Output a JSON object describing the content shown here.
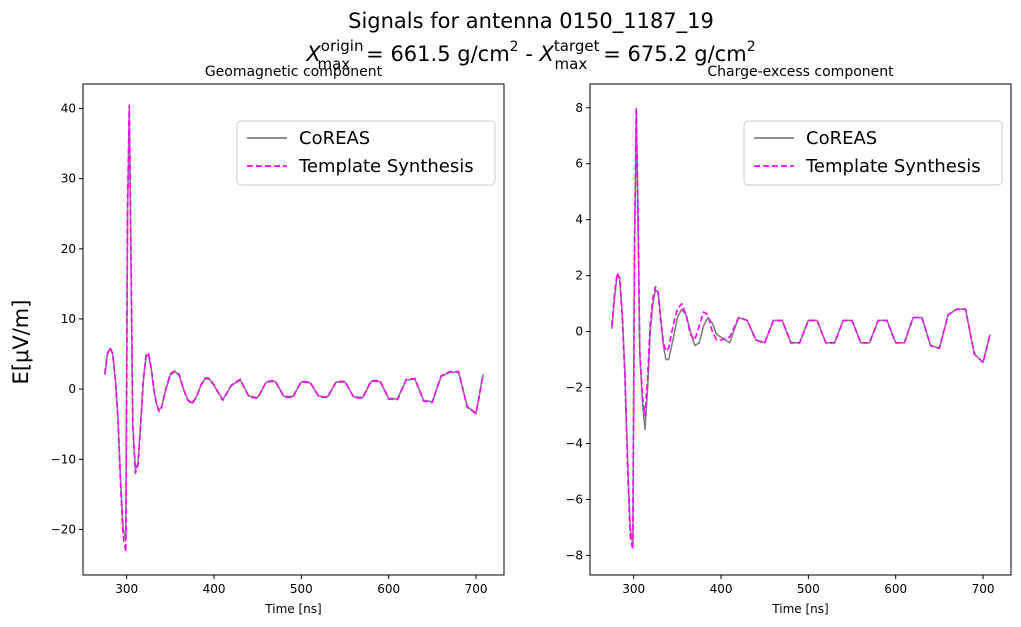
{
  "figure": {
    "title_line1": "Signals for antenna 0150_1187_19",
    "title_line2": {
      "origin_label": "X",
      "origin_sup": "origin",
      "origin_sub": "max",
      "origin_value": "=  661.5 g/cm",
      "joiner": " -  ",
      "target_label": "X",
      "target_sup": "target",
      "target_sub": "max",
      "target_value": "=  675.2 g/cm",
      "unit_exponent": "2"
    },
    "shared_ylabel": "E[μV/m]"
  },
  "colors": {
    "coreas": "#808080",
    "template_synthesis": "#ff00ff"
  },
  "chart_data": [
    {
      "type": "line",
      "title": "Geomagnetic component",
      "xlabel": "Time [ns]",
      "ylabel": "E[μV/m]",
      "xlim": [
        250,
        732
      ],
      "ylim": [
        -26.5,
        43.5
      ],
      "xticks": [
        300,
        400,
        500,
        600,
        700
      ],
      "yticks": [
        -20,
        -10,
        0,
        10,
        20,
        30,
        40
      ],
      "ytick_labels": [
        "−20",
        "−10",
        "0",
        "10",
        "20",
        "30",
        "40"
      ],
      "grid": false,
      "legend_position": "top-right",
      "x": [
        275,
        278,
        281,
        284,
        287,
        290,
        293,
        296,
        299,
        301,
        303,
        305,
        307,
        310,
        313,
        316,
        319,
        322,
        325,
        328,
        331,
        334,
        337,
        340,
        345,
        350,
        355,
        360,
        365,
        370,
        375,
        380,
        385,
        390,
        395,
        400,
        410,
        420,
        430,
        440,
        450,
        460,
        470,
        480,
        490,
        500,
        510,
        520,
        530,
        540,
        550,
        560,
        570,
        580,
        590,
        600,
        610,
        620,
        630,
        640,
        650,
        660,
        670,
        680,
        690,
        700,
        708
      ],
      "series": [
        {
          "name": "CoREAS",
          "style": "solid",
          "values": [
            2.0,
            5.0,
            5.8,
            5.0,
            1.5,
            -4.0,
            -13.0,
            -20.0,
            -21.5,
            25.0,
            40.0,
            18.0,
            -5.0,
            -11.5,
            -10.5,
            -5.0,
            1.0,
            4.5,
            5.0,
            3.0,
            0.0,
            -2.0,
            -3.0,
            -2.5,
            0.0,
            2.0,
            2.5,
            2.0,
            0.0,
            -1.5,
            -2.0,
            -1.0,
            0.5,
            1.5,
            1.4,
            0.5,
            -1.5,
            0.5,
            1.3,
            -1.0,
            -1.2,
            1.0,
            1.1,
            -1.0,
            -1.1,
            1.0,
            0.9,
            -1.0,
            -1.1,
            1.0,
            1.0,
            -1.1,
            -1.2,
            1.1,
            1.1,
            -1.3,
            -1.4,
            1.3,
            1.4,
            -1.6,
            -1.8,
            1.8,
            2.4,
            2.4,
            -2.5,
            -3.4,
            2.0
          ]
        },
        {
          "name": "Template Synthesis",
          "style": "dashed",
          "values": [
            2.2,
            5.1,
            5.9,
            5.1,
            1.4,
            -4.2,
            -13.5,
            -21.0,
            -23.2,
            26.0,
            40.5,
            18.5,
            -5.2,
            -12.0,
            -10.8,
            -5.2,
            1.1,
            4.8,
            5.2,
            3.1,
            0.1,
            -2.1,
            -3.2,
            -2.6,
            0.1,
            2.2,
            2.6,
            2.1,
            0.0,
            -1.6,
            -2.1,
            -1.1,
            0.6,
            1.6,
            1.5,
            0.6,
            -1.6,
            0.6,
            1.4,
            -1.1,
            -1.3,
            1.1,
            1.2,
            -1.1,
            -1.2,
            1.1,
            1.0,
            -1.1,
            -1.2,
            1.1,
            1.1,
            -1.2,
            -1.3,
            1.2,
            1.2,
            -1.4,
            -1.5,
            1.4,
            1.5,
            -1.7,
            -1.9,
            1.9,
            2.5,
            2.5,
            -2.6,
            -3.5,
            2.1
          ]
        }
      ]
    },
    {
      "type": "line",
      "title": "Charge-excess component",
      "xlabel": "Time [ns]",
      "ylabel": "",
      "xlim": [
        250,
        732
      ],
      "ylim": [
        -8.7,
        8.85
      ],
      "xticks": [
        300,
        400,
        500,
        600,
        700
      ],
      "yticks": [
        -8,
        -6,
        -4,
        -2,
        0,
        2,
        4,
        6,
        8
      ],
      "ytick_labels": [
        "−8",
        "−6",
        "−4",
        "−2",
        "0",
        "2",
        "4",
        "6",
        "8"
      ],
      "grid": false,
      "legend_position": "top-right",
      "x": [
        275,
        278,
        281,
        284,
        287,
        290,
        293,
        296,
        299,
        301,
        303,
        305,
        307,
        310,
        313,
        316,
        319,
        322,
        325,
        328,
        331,
        334,
        337,
        340,
        345,
        350,
        355,
        360,
        365,
        370,
        375,
        380,
        385,
        390,
        395,
        400,
        410,
        420,
        430,
        440,
        450,
        460,
        470,
        480,
        490,
        500,
        510,
        520,
        530,
        540,
        550,
        560,
        570,
        580,
        590,
        600,
        610,
        620,
        630,
        640,
        650,
        660,
        670,
        680,
        690,
        700,
        708
      ],
      "series": [
        {
          "name": "CoREAS",
          "style": "solid",
          "values": [
            0.1,
            1.2,
            2.0,
            1.9,
            0.6,
            -1.5,
            -4.5,
            -7.0,
            -7.6,
            3.0,
            7.8,
            4.0,
            -0.8,
            -2.5,
            -3.5,
            -2.0,
            0.0,
            1.0,
            1.5,
            1.4,
            0.5,
            -0.5,
            -1.0,
            -1.0,
            -0.3,
            0.5,
            0.8,
            0.6,
            0.0,
            -0.5,
            -0.4,
            0.2,
            0.5,
            0.3,
            -0.1,
            -0.2,
            -0.4,
            0.5,
            0.4,
            -0.3,
            -0.4,
            0.4,
            0.4,
            -0.4,
            -0.4,
            0.4,
            0.4,
            -0.4,
            -0.4,
            0.4,
            0.4,
            -0.4,
            -0.4,
            0.4,
            0.4,
            -0.4,
            -0.4,
            0.5,
            0.5,
            -0.5,
            -0.6,
            0.6,
            0.8,
            0.8,
            -0.8,
            -1.1,
            -0.1
          ]
        },
        {
          "name": "Template Synthesis",
          "style": "dashed",
          "values": [
            0.2,
            1.3,
            2.1,
            1.9,
            0.5,
            -1.6,
            -4.8,
            -7.3,
            -7.8,
            3.2,
            8.0,
            4.1,
            -0.7,
            -2.3,
            -3.0,
            -1.6,
            0.3,
            1.2,
            1.6,
            1.4,
            0.4,
            -0.4,
            -0.7,
            -0.6,
            0.2,
            0.8,
            1.0,
            0.6,
            -0.1,
            -0.3,
            0.2,
            0.7,
            0.6,
            0.0,
            -0.3,
            -0.3,
            -0.2,
            0.5,
            0.4,
            -0.3,
            -0.4,
            0.4,
            0.4,
            -0.4,
            -0.4,
            0.4,
            0.4,
            -0.4,
            -0.4,
            0.4,
            0.4,
            -0.4,
            -0.4,
            0.4,
            0.4,
            -0.4,
            -0.4,
            0.5,
            0.5,
            -0.5,
            -0.6,
            0.6,
            0.8,
            0.8,
            -0.8,
            -1.1,
            -0.1
          ]
        }
      ]
    }
  ]
}
